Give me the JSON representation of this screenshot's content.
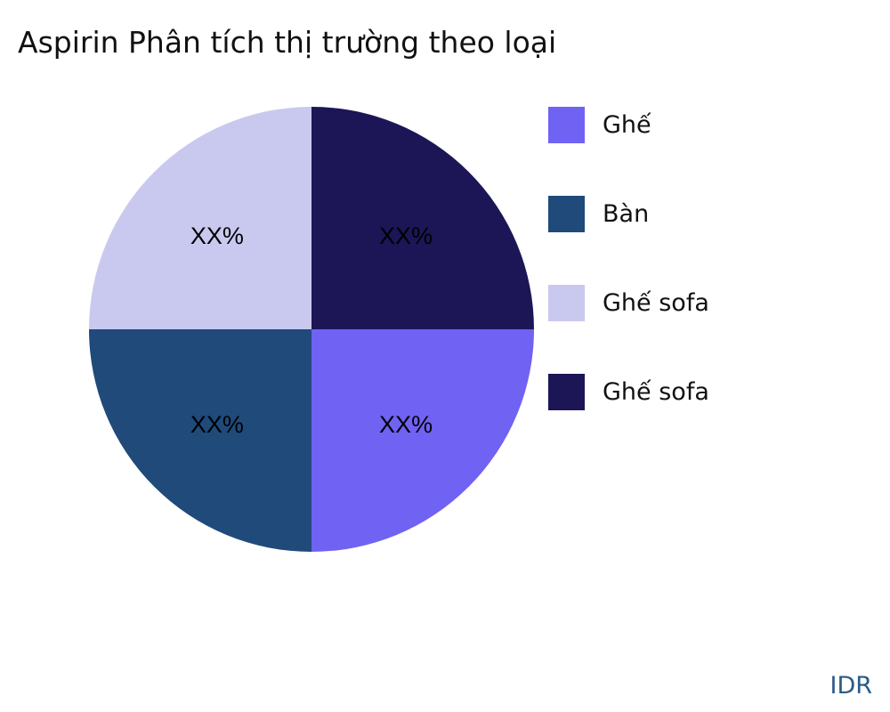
{
  "chart_data": {
    "type": "pie",
    "title": "Aspirin Phân tích thị trường theo loại",
    "categories": [
      "Ghế",
      "Bàn",
      "Ghế sofa",
      "Ghế sofa"
    ],
    "values": [
      25,
      25,
      25,
      25
    ],
    "data_labels": [
      "XX%",
      "XX%",
      "XX%",
      "XX%"
    ],
    "colors": [
      "#7062f2",
      "#1f4a7a",
      "#c9c9f0",
      "#1c1657"
    ],
    "start_angle": "3 o'clock",
    "direction": "clockwise",
    "legend_position": "right"
  },
  "source": "IDR"
}
